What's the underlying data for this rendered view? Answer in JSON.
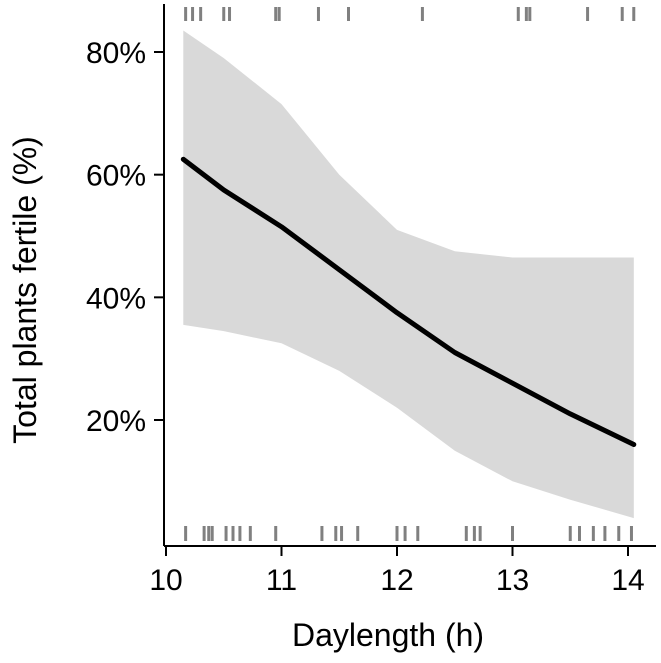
{
  "chart_data": {
    "type": "line",
    "xlabel": "Daylength (h)",
    "ylabel": "Total plants fertile (%)",
    "xlim": [
      10.0,
      14.3
    ],
    "ylim": [
      0.0,
      0.88
    ],
    "x_ticks": [
      10,
      11,
      12,
      13,
      14
    ],
    "x_tick_labels": [
      "10",
      "11",
      "12",
      "13",
      "14"
    ],
    "y_ticks": [
      0.2,
      0.4,
      0.6,
      0.8
    ],
    "y_tick_labels": [
      "20%",
      "40%",
      "60%",
      "80%"
    ],
    "grid": false,
    "legend": "none",
    "series": [
      {
        "x": [
          10.15,
          10.5,
          11.0,
          11.5,
          12.0,
          12.5,
          13.0,
          13.5,
          14.05
        ],
        "y": [
          0.625,
          0.575,
          0.515,
          0.445,
          0.375,
          0.31,
          0.26,
          0.21,
          0.16
        ],
        "lower": [
          0.355,
          0.345,
          0.325,
          0.28,
          0.22,
          0.15,
          0.1,
          0.07,
          0.04
        ],
        "upper": [
          0.835,
          0.79,
          0.715,
          0.6,
          0.51,
          0.475,
          0.465,
          0.465,
          0.465
        ]
      }
    ],
    "rug_top": [
      10.17,
      10.23,
      10.3,
      10.5,
      10.55,
      10.95,
      10.98,
      11.32,
      11.58,
      12.22,
      13.05,
      13.12,
      13.15,
      13.65,
      13.95,
      14.05
    ],
    "rug_bottom": [
      10.17,
      10.33,
      10.37,
      10.4,
      10.52,
      10.58,
      10.64,
      10.73,
      10.95,
      11.35,
      11.47,
      11.52,
      11.66,
      12.0,
      12.07,
      12.18,
      12.6,
      12.67,
      12.72,
      13.0,
      13.5,
      13.58,
      13.7,
      13.8,
      13.92,
      14.03
    ]
  },
  "colors": {
    "line": "#000000",
    "ribbon": "#d9d9d9",
    "rug": "#808080",
    "axis": "#000000"
  }
}
